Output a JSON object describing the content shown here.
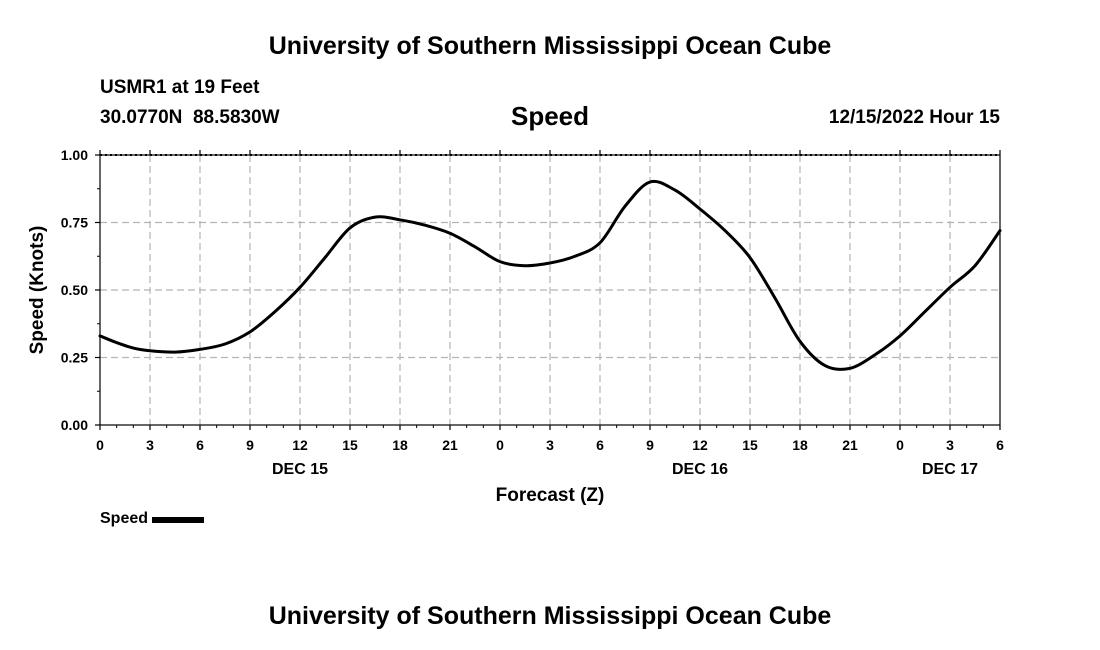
{
  "header": {
    "title": "University of Southern Mississippi Ocean Cube",
    "station": "USMR1 at 19 Feet",
    "coords": "30.0770N  88.5830W",
    "chart_title": "Speed",
    "run_time": "12/15/2022 Hour 15"
  },
  "footer": {
    "title": "University of Southern Mississippi Ocean Cube"
  },
  "legend": {
    "label": "Speed"
  },
  "colors": {
    "line": "#000000",
    "grid": "#b4b4b4",
    "background": "#ffffff"
  },
  "chart_data": {
    "type": "line",
    "title": "Speed",
    "xlabel": "Forecast (Z)",
    "ylabel": "Speed (Knots)",
    "xlim": [
      0,
      54
    ],
    "ylim": [
      0,
      1.0
    ],
    "y_ticks": [
      {
        "value": 0.0,
        "label": "0.00"
      },
      {
        "value": 0.25,
        "label": "0.25"
      },
      {
        "value": 0.5,
        "label": "0.50"
      },
      {
        "value": 0.75,
        "label": "0.75"
      },
      {
        "value": 1.0,
        "label": "1.00"
      }
    ],
    "x_ticks": [
      {
        "value": 0,
        "label": "0"
      },
      {
        "value": 3,
        "label": "3"
      },
      {
        "value": 6,
        "label": "6"
      },
      {
        "value": 9,
        "label": "9"
      },
      {
        "value": 12,
        "label": "12"
      },
      {
        "value": 15,
        "label": "15"
      },
      {
        "value": 18,
        "label": "18"
      },
      {
        "value": 21,
        "label": "21"
      },
      {
        "value": 24,
        "label": "0"
      },
      {
        "value": 27,
        "label": "3"
      },
      {
        "value": 30,
        "label": "6"
      },
      {
        "value": 33,
        "label": "9"
      },
      {
        "value": 36,
        "label": "12"
      },
      {
        "value": 39,
        "label": "15"
      },
      {
        "value": 42,
        "label": "18"
      },
      {
        "value": 45,
        "label": "21"
      },
      {
        "value": 48,
        "label": "0"
      },
      {
        "value": 51,
        "label": "3"
      },
      {
        "value": 54,
        "label": "6"
      }
    ],
    "date_labels": [
      {
        "value": 12,
        "label": "DEC 15"
      },
      {
        "value": 36,
        "label": "DEC 16"
      },
      {
        "value": 51,
        "label": "DEC 17"
      }
    ],
    "series": [
      {
        "name": "Speed",
        "x": [
          0,
          1,
          2,
          3,
          4.5,
          6,
          7.5,
          9,
          10.5,
          12,
          13.5,
          15,
          16.5,
          18,
          19.5,
          21,
          22.5,
          24,
          25.5,
          27,
          28.5,
          30,
          31.5,
          33,
          34.5,
          36,
          37.5,
          39,
          40.5,
          42,
          43.5,
          45,
          46.5,
          48,
          49.5,
          51,
          52.5,
          54
        ],
        "values": [
          0.33,
          0.305,
          0.285,
          0.275,
          0.27,
          0.28,
          0.3,
          0.345,
          0.42,
          0.51,
          0.62,
          0.73,
          0.77,
          0.76,
          0.74,
          0.71,
          0.66,
          0.605,
          0.59,
          0.6,
          0.625,
          0.675,
          0.81,
          0.9,
          0.87,
          0.8,
          0.72,
          0.62,
          0.47,
          0.31,
          0.22,
          0.21,
          0.26,
          0.33,
          0.42,
          0.51,
          0.59,
          0.72
        ]
      }
    ]
  }
}
